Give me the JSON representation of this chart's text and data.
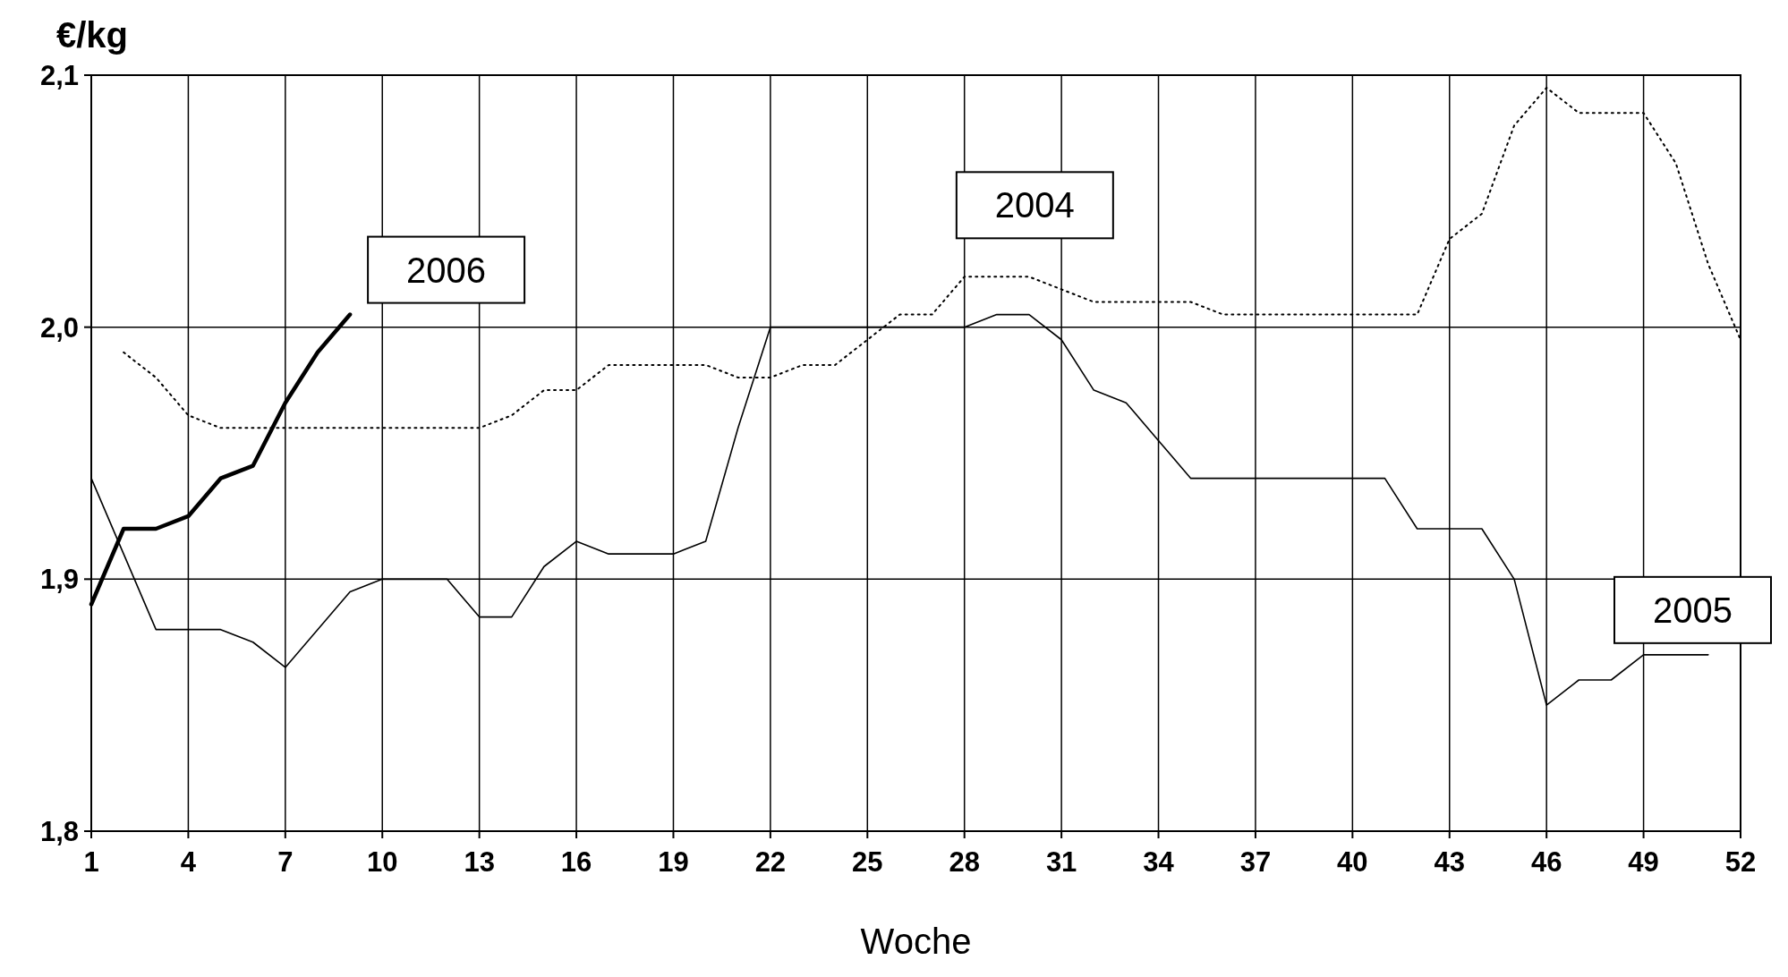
{
  "chart_data": {
    "type": "line",
    "ylabel": "€/kg",
    "xlabel": "Woche",
    "xlim": [
      1,
      52
    ],
    "xticks": [
      1,
      4,
      7,
      10,
      13,
      16,
      19,
      22,
      25,
      28,
      31,
      34,
      37,
      40,
      43,
      46,
      49,
      52
    ],
    "ylim": [
      1.8,
      2.1
    ],
    "yticks": [
      {
        "value": 1.8,
        "label": "1,8"
      },
      {
        "value": 1.9,
        "label": "1,9"
      },
      {
        "value": 2.0,
        "label": "2,0"
      },
      {
        "value": 2.1,
        "label": "2,1"
      }
    ],
    "grid": true,
    "marker": "none",
    "series": [
      {
        "name": "2004",
        "color": "#000000",
        "line_style": "dotted",
        "x": [
          2,
          3,
          4,
          5,
          6,
          7,
          8,
          9,
          10,
          11,
          12,
          13,
          14,
          15,
          16,
          17,
          18,
          19,
          20,
          21,
          22,
          23,
          24,
          25,
          26,
          27,
          28,
          29,
          30,
          31,
          32,
          33,
          34,
          35,
          36,
          37,
          38,
          39,
          40,
          41,
          42,
          43,
          44,
          45,
          46,
          47,
          48,
          49,
          50,
          51,
          52
        ],
        "values": [
          1.99,
          1.98,
          1.965,
          1.96,
          1.96,
          1.96,
          1.96,
          1.96,
          1.96,
          1.96,
          1.96,
          1.96,
          1.965,
          1.975,
          1.975,
          1.985,
          1.985,
          1.985,
          1.985,
          1.98,
          1.98,
          1.985,
          1.985,
          1.995,
          2.005,
          2.005,
          2.02,
          2.02,
          2.02,
          2.015,
          2.01,
          2.01,
          2.01,
          2.01,
          2.005,
          2.005,
          2.005,
          2.005,
          2.005,
          2.005,
          2.005,
          2.035,
          2.045,
          2.08,
          2.095,
          2.085,
          2.085,
          2.085,
          2.065,
          2.025,
          1.995
        ]
      },
      {
        "name": "2005",
        "color": "#000000",
        "line_style": "solid",
        "x": [
          1,
          2,
          3,
          4,
          5,
          6,
          7,
          8,
          9,
          10,
          11,
          12,
          13,
          14,
          15,
          16,
          17,
          18,
          19,
          20,
          21,
          22,
          23,
          24,
          25,
          26,
          27,
          28,
          29,
          30,
          31,
          32,
          33,
          34,
          35,
          36,
          37,
          38,
          39,
          40,
          41,
          42,
          43,
          44,
          45,
          46,
          47,
          48,
          49,
          50,
          51
        ],
        "values": [
          1.94,
          1.91,
          1.88,
          1.88,
          1.88,
          1.875,
          1.865,
          1.88,
          1.895,
          1.9,
          1.9,
          1.9,
          1.885,
          1.885,
          1.905,
          1.915,
          1.91,
          1.91,
          1.91,
          1.915,
          1.96,
          2.0,
          2.0,
          2.0,
          2.0,
          2.0,
          2.0,
          2.0,
          2.005,
          2.005,
          1.995,
          1.975,
          1.97,
          1.955,
          1.94,
          1.94,
          1.94,
          1.94,
          1.94,
          1.94,
          1.94,
          1.92,
          1.92,
          1.92,
          1.9,
          1.85,
          1.86,
          1.86,
          1.87,
          1.87,
          1.87
        ]
      },
      {
        "name": "2006",
        "color": "#000000",
        "line_style": "solid",
        "x": [
          1,
          2,
          3,
          4,
          5,
          6,
          7,
          8,
          9
        ],
        "values": [
          1.89,
          1.92,
          1.92,
          1.925,
          1.94,
          1.945,
          1.97,
          1.99,
          2.005
        ]
      }
    ]
  }
}
